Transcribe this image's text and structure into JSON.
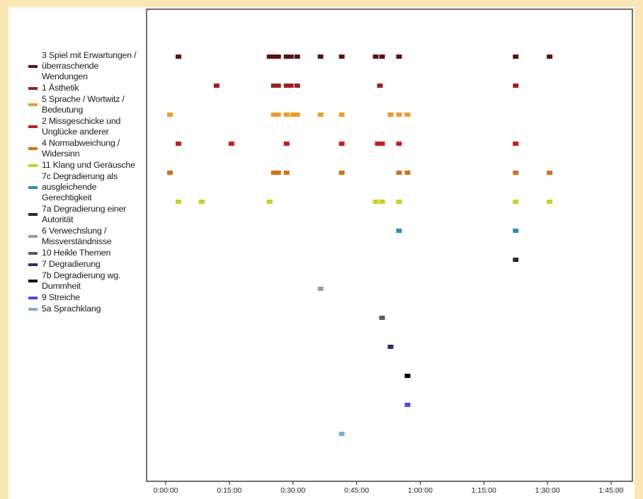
{
  "chart_data": {
    "type": "scatter",
    "xlabel": "",
    "ylabel": "",
    "xlim": [
      -420,
      6700
    ],
    "x_ticks": [
      "0:00:00",
      "0:15:00",
      "0:30:00",
      "0:45:00",
      "1:00:00",
      "1:15:00",
      "1:30:00",
      "1:45:00"
    ],
    "series": [
      {
        "name": "3 Spiel mit Erwartungen / überraschende Wendungen",
        "color": "#5a1212",
        "row": 1,
        "x": [
          "0:03:00",
          "0:24:30",
          "0:25:30",
          "0:26:30",
          "0:28:30",
          "0:29:30",
          "0:31:00",
          "0:36:30",
          "0:41:30",
          "0:49:30",
          "0:51:00",
          "0:55:00",
          "1:22:30",
          "1:30:30"
        ]
      },
      {
        "name": "1 Ästhetik",
        "color": "#9b2121",
        "row": 2,
        "x": [
          "0:12:00",
          "0:25:30",
          "0:26:30",
          "0:28:30",
          "0:29:30",
          "0:31:00",
          "0:50:30",
          "1:22:30"
        ]
      },
      {
        "name": "5 Sprache / Wortwitz / Bedeutung",
        "color": "#ef9b2a",
        "row": 3,
        "x": [
          "0:01:00",
          "0:25:30",
          "0:26:30",
          "0:28:30",
          "0:30:00",
          "0:31:00",
          "0:36:30",
          "0:41:30",
          "0:53:00",
          "0:55:00",
          "0:57:00"
        ]
      },
      {
        "name": "2 Missgeschicke und Unglücke anderer",
        "color": "#c21e26",
        "row": 4,
        "x": [
          "0:03:00",
          "0:15:30",
          "0:28:30",
          "0:41:30",
          "0:50:00",
          "0:51:00",
          "0:55:00",
          "1:22:30"
        ]
      },
      {
        "name": "4 Normabweichung / Widersinn",
        "color": "#d0731a",
        "row": 5,
        "x": [
          "0:01:00",
          "0:25:30",
          "0:26:30",
          "0:28:30",
          "0:41:30",
          "0:55:00",
          "0:57:00",
          "1:22:30",
          "1:30:30"
        ]
      },
      {
        "name": "11 Klang und Geräusche",
        "color": "#c9cc2a",
        "row": 6,
        "x": [
          "0:03:00",
          "0:08:30",
          "0:24:30",
          "0:49:30",
          "0:51:00",
          "0:55:00",
          "1:22:30",
          "1:30:30"
        ]
      },
      {
        "name": "7c Degradierung als ausgleichende Gerechtigkeit",
        "color": "#2f8fb3",
        "row": 7,
        "x": [
          "0:55:00",
          "1:22:30"
        ]
      },
      {
        "name": "7a Degradierung einer Autorität",
        "color": "#2b2b2b",
        "row": 8,
        "x": [
          "1:22:30"
        ]
      },
      {
        "name": "6 Verwechslung / Missverständnisse",
        "color": "#9c9c9c",
        "row": 9,
        "x": [
          "0:36:30"
        ]
      },
      {
        "name": "10 Heikle Themen",
        "color": "#5b5b5b",
        "row": 10,
        "x": [
          "0:51:00"
        ]
      },
      {
        "name": "7 Degradierung",
        "color": "#2d2a72",
        "row": 11,
        "x": [
          "0:53:00"
        ]
      },
      {
        "name": "7b Degradierung wg. Dummheit",
        "color": "#000000",
        "row": 12,
        "x": [
          "0:57:00"
        ]
      },
      {
        "name": "9 Streiche",
        "color": "#4b4bdc",
        "row": 13,
        "x": [
          "0:57:00"
        ]
      },
      {
        "name": "5a Sprachklang",
        "color": "#7aaed6",
        "row": 14,
        "x": [
          "0:41:30"
        ]
      }
    ]
  }
}
